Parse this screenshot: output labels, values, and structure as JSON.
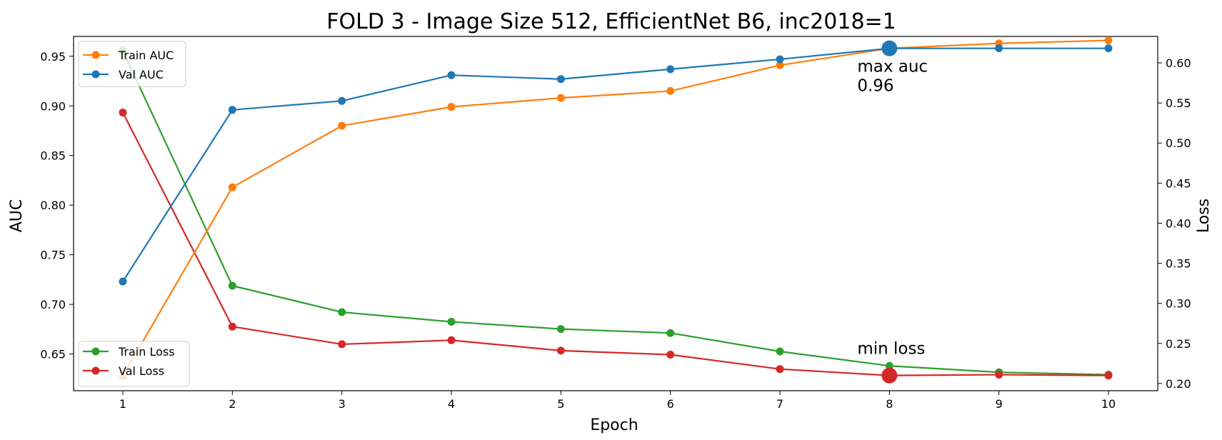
{
  "chart_data": {
    "type": "line",
    "title": "FOLD 3 - Image Size 512, EfficientNet B6, inc2018=1",
    "xlabel": "Epoch",
    "ylabel_left": "AUC",
    "ylabel_right": "Loss",
    "x": [
      1,
      2,
      3,
      4,
      5,
      6,
      7,
      8,
      9,
      10
    ],
    "xlim": [
      0.55,
      10.45
    ],
    "ylim_left": [
      0.613,
      0.97
    ],
    "ylim_right": [
      0.191,
      0.633
    ],
    "xticks": [
      1,
      2,
      3,
      4,
      5,
      6,
      7,
      8,
      9,
      10
    ],
    "yticks_left": [
      0.65,
      0.7,
      0.75,
      0.8,
      0.85,
      0.9,
      0.95
    ],
    "yticks_left_labels": [
      "0.65",
      "0.70",
      "0.75",
      "0.80",
      "0.85",
      "0.90",
      "0.95"
    ],
    "yticks_right": [
      0.2,
      0.25,
      0.3,
      0.35,
      0.4,
      0.45,
      0.5,
      0.55,
      0.6
    ],
    "yticks_right_labels": [
      "0.20",
      "0.25",
      "0.30",
      "0.35",
      "0.40",
      "0.45",
      "0.50",
      "0.55",
      "0.60"
    ],
    "grid": false,
    "series_auc": [
      {
        "name": "Train AUC",
        "color": "#ff7f0e",
        "values": [
          0.628,
          0.818,
          0.88,
          0.899,
          0.908,
          0.915,
          0.941,
          0.958,
          0.963,
          0.966
        ]
      },
      {
        "name": "Val AUC",
        "color": "#1f77b4",
        "values": [
          0.723,
          0.896,
          0.905,
          0.931,
          0.927,
          0.937,
          0.947,
          0.958,
          0.958,
          0.958
        ]
      }
    ],
    "series_loss": [
      {
        "name": "Train Loss",
        "color": "#2ca02c",
        "values": [
          0.615,
          0.322,
          0.289,
          0.277,
          0.268,
          0.263,
          0.24,
          0.222,
          0.214,
          0.211
        ]
      },
      {
        "name": "Val Loss",
        "color": "#d62728",
        "values": [
          0.538,
          0.271,
          0.249,
          0.254,
          0.241,
          0.236,
          0.218,
          0.21,
          0.211,
          0.21
        ]
      }
    ],
    "legend_auc_placement": "upper-left",
    "legend_loss_placement": "lower-left",
    "annotations": [
      {
        "text_line1": "max auc",
        "text_line2": "0.96",
        "x": 8,
        "y": 0.958,
        "axis": "left",
        "color": "#1f77b4"
      },
      {
        "text_line1": "min loss",
        "x": 8,
        "y": 0.21,
        "axis": "right",
        "color": "#d62728"
      }
    ]
  }
}
